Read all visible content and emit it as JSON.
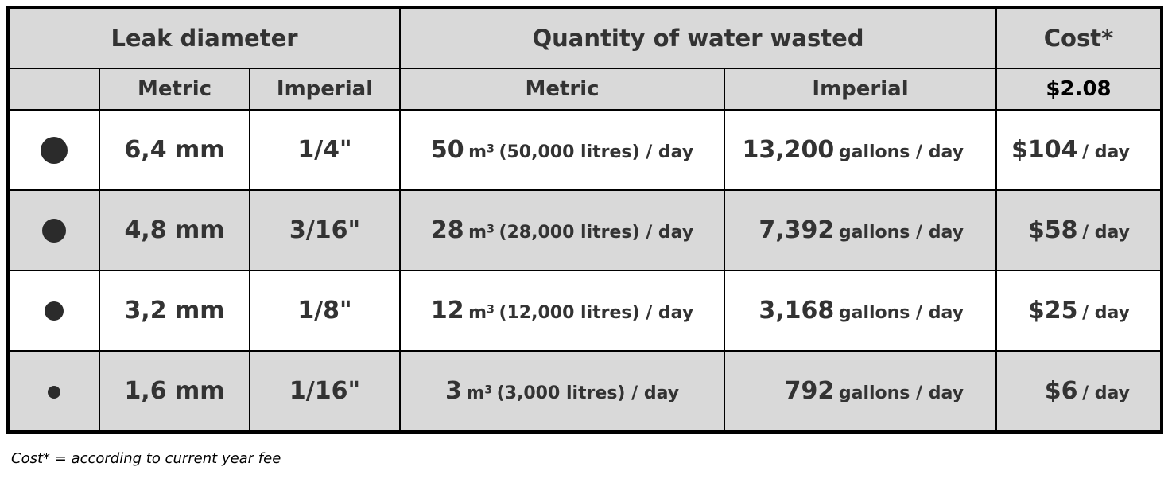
{
  "headers": {
    "leak_diameter": "Leak diameter",
    "quantity": "Quantity of water wasted",
    "cost": "Cost*"
  },
  "subheaders": {
    "metric": "Metric",
    "imperial": "Imperial",
    "q_metric": "Metric",
    "q_imperial": "Imperial",
    "cost_rate": "$2.08"
  },
  "rows": [
    {
      "dot_size_px": 34,
      "metric": "6,4 mm",
      "imperial": "1/4\"",
      "q_metric_value": "50",
      "q_metric_unit": "m",
      "q_metric_sup": "3",
      "q_metric_rest": "(50,000 litres) / day",
      "q_imperial_value": "13,200",
      "q_imperial_unit": "gallons / day",
      "cost_value": "$104",
      "cost_unit": "/ day"
    },
    {
      "dot_size_px": 30,
      "metric": "4,8 mm",
      "imperial": "3/16\"",
      "q_metric_value": "28",
      "q_metric_unit": "m",
      "q_metric_sup": "3",
      "q_metric_rest": "(28,000 litres) / day",
      "q_imperial_value": "7,392",
      "q_imperial_unit": "gallons / day",
      "cost_value": "$58",
      "cost_unit": "/ day"
    },
    {
      "dot_size_px": 24,
      "metric": "3,2 mm",
      "imperial": "1/8\"",
      "q_metric_value": "12",
      "q_metric_unit": "m",
      "q_metric_sup": "3",
      "q_metric_rest": "(12,000 litres) / day",
      "q_imperial_value": "3,168",
      "q_imperial_unit": "gallons / day",
      "cost_value": "$25",
      "cost_unit": "/ day"
    },
    {
      "dot_size_px": 16,
      "metric": "1,6 mm",
      "imperial": "1/16\"",
      "q_metric_value": "3",
      "q_metric_unit": "m",
      "q_metric_sup": "3",
      "q_metric_rest": "(3,000 litres) / day",
      "q_imperial_value": "792",
      "q_imperial_unit": "gallons / day",
      "cost_value": "$6",
      "cost_unit": "/ day"
    }
  ],
  "footnote": "Cost* = according to current year fee",
  "colors": {
    "header_bg": "#d9d9d9",
    "row_alt_bg": "#d9d9d9",
    "border": "#000000",
    "text": "#333333",
    "dot": "#2b2b2b"
  }
}
